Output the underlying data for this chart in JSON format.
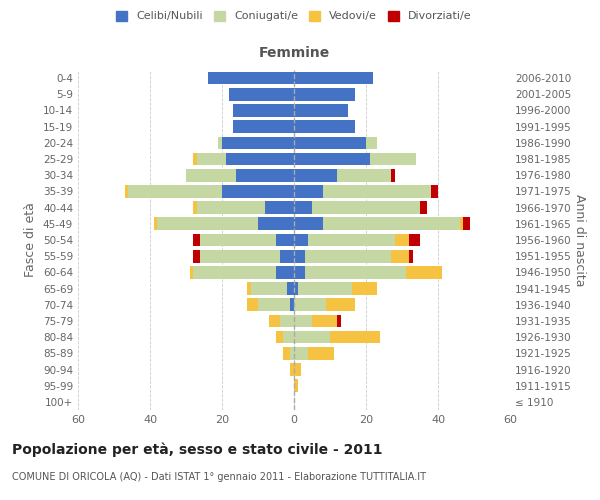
{
  "age_groups": [
    "100+",
    "95-99",
    "90-94",
    "85-89",
    "80-84",
    "75-79",
    "70-74",
    "65-69",
    "60-64",
    "55-59",
    "50-54",
    "45-49",
    "40-44",
    "35-39",
    "30-34",
    "25-29",
    "20-24",
    "15-19",
    "10-14",
    "5-9",
    "0-4"
  ],
  "birth_years": [
    "≤ 1910",
    "1911-1915",
    "1916-1920",
    "1921-1925",
    "1926-1930",
    "1931-1935",
    "1936-1940",
    "1941-1945",
    "1946-1950",
    "1951-1955",
    "1956-1960",
    "1961-1965",
    "1966-1970",
    "1971-1975",
    "1976-1980",
    "1981-1985",
    "1986-1990",
    "1991-1995",
    "1996-2000",
    "2001-2005",
    "2006-2010"
  ],
  "male_celibe": [
    0,
    0,
    0,
    0,
    0,
    0,
    1,
    2,
    5,
    4,
    5,
    10,
    8,
    20,
    16,
    19,
    20,
    17,
    17,
    18,
    24
  ],
  "male_coniugato": [
    0,
    0,
    0,
    1,
    3,
    4,
    9,
    10,
    23,
    22,
    21,
    28,
    19,
    26,
    14,
    8,
    1,
    0,
    0,
    0,
    0
  ],
  "male_vedovo": [
    0,
    0,
    1,
    2,
    2,
    3,
    3,
    1,
    1,
    0,
    0,
    1,
    1,
    1,
    0,
    1,
    0,
    0,
    0,
    0,
    0
  ],
  "male_divorziato": [
    0,
    0,
    0,
    0,
    0,
    0,
    0,
    0,
    0,
    2,
    2,
    0,
    0,
    0,
    0,
    0,
    0,
    0,
    0,
    0,
    0
  ],
  "female_celibe": [
    0,
    0,
    0,
    0,
    0,
    0,
    0,
    1,
    3,
    3,
    4,
    8,
    5,
    8,
    12,
    21,
    20,
    17,
    15,
    17,
    22
  ],
  "female_coniugato": [
    0,
    0,
    0,
    4,
    10,
    5,
    9,
    15,
    28,
    24,
    24,
    38,
    30,
    30,
    15,
    13,
    3,
    0,
    0,
    0,
    0
  ],
  "female_vedovo": [
    0,
    1,
    2,
    7,
    14,
    7,
    8,
    7,
    10,
    5,
    4,
    1,
    0,
    0,
    0,
    0,
    0,
    0,
    0,
    0,
    0
  ],
  "female_divorziato": [
    0,
    0,
    0,
    0,
    0,
    1,
    0,
    0,
    0,
    1,
    3,
    2,
    2,
    2,
    1,
    0,
    0,
    0,
    0,
    0,
    0
  ],
  "color_celibe": "#4472c4",
  "color_coniugato": "#c5d8a4",
  "color_vedovo": "#f5c242",
  "color_divorziato": "#c00000",
  "xlim": 60,
  "title": "Popolazione per età, sesso e stato civile - 2011",
  "subtitle": "COMUNE DI ORICOLA (AQ) - Dati ISTAT 1° gennaio 2011 - Elaborazione TUTTITALIA.IT",
  "ylabel_left": "Fasce di età",
  "ylabel_right": "Anni di nascita",
  "xlabel_female": "Femmine",
  "legend_labels": [
    "Celibi/Nubili",
    "Coniugati/e",
    "Vedovi/e",
    "Divorziati/e"
  ]
}
